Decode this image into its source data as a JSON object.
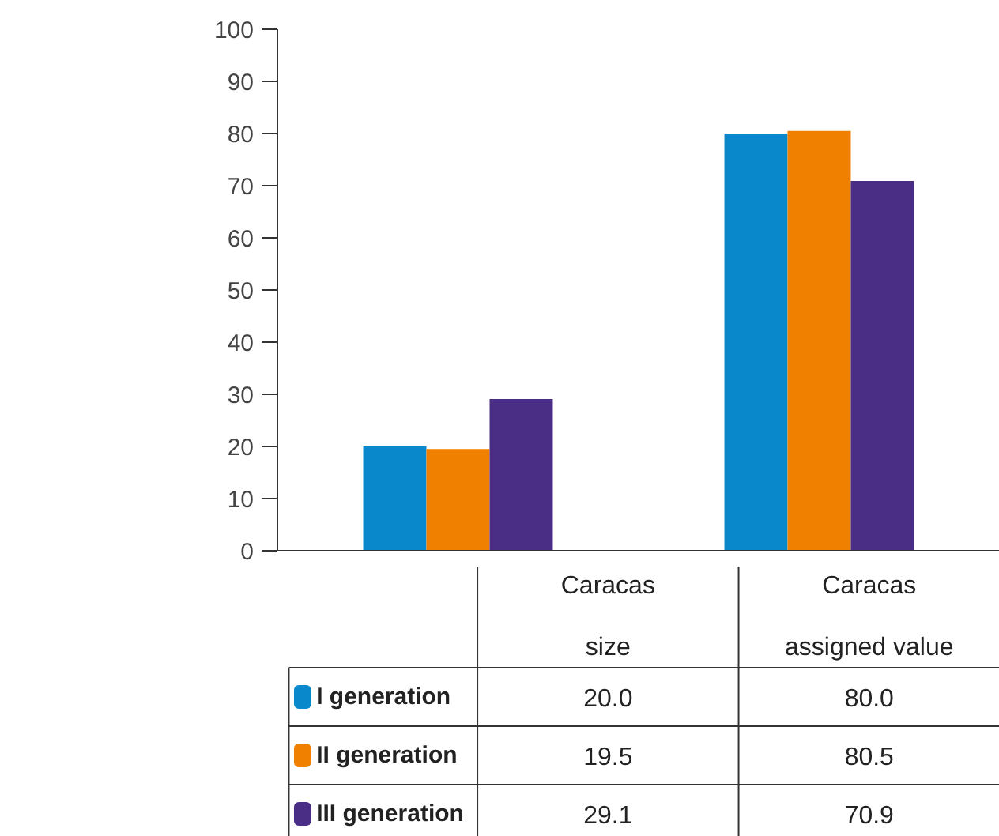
{
  "chart_data": {
    "type": "bar",
    "categories": [
      "Caracas\nsize",
      "Caracas\nassigned value"
    ],
    "series": [
      {
        "name": "I generation",
        "color": "#0a88cc",
        "values": [
          20.0,
          80.0
        ],
        "value_labels": [
          "20.0",
          "80.0"
        ]
      },
      {
        "name": "II generation",
        "color": "#f08100",
        "values": [
          19.5,
          80.5
        ],
        "value_labels": [
          "19.5",
          "80.5"
        ]
      },
      {
        "name": "III generation",
        "color": "#4a2d85",
        "values": [
          29.1,
          70.9
        ],
        "value_labels": [
          "29.1",
          "70.9"
        ]
      }
    ],
    "ylim": [
      0,
      100
    ],
    "yticks": [
      0,
      10,
      20,
      30,
      40,
      50,
      60,
      70,
      80,
      90,
      100
    ],
    "grid": false,
    "legend": "bottom"
  }
}
